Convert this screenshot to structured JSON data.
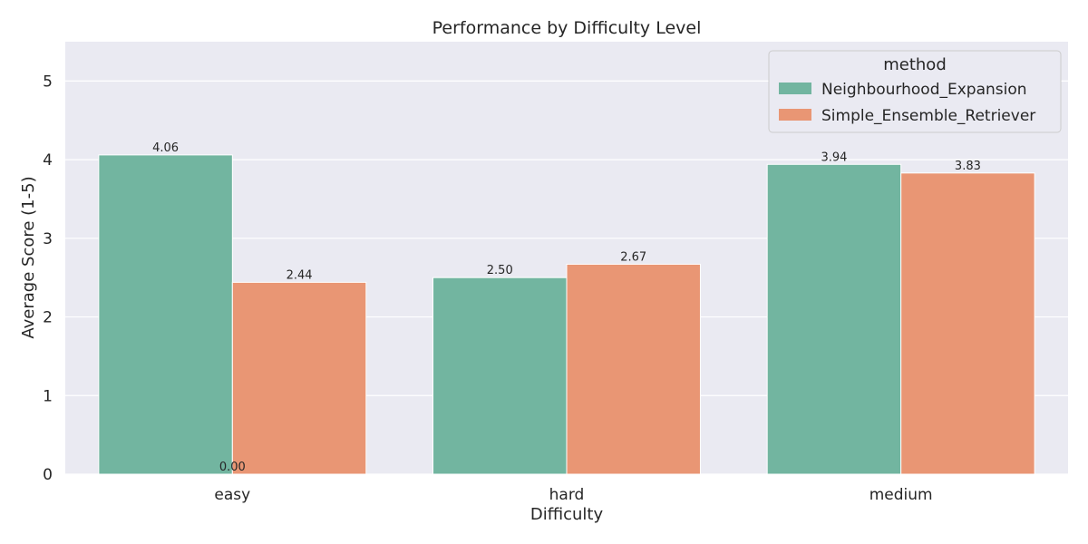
{
  "chart_data": {
    "type": "bar",
    "title": "Performance by Difficulty Level",
    "xlabel": "Difficulty",
    "ylabel": "Average Score (1-5)",
    "categories": [
      "easy",
      "hard",
      "medium"
    ],
    "series": [
      {
        "name": "Neighbourhood_Expansion",
        "values": [
          4.06,
          2.5,
          3.94
        ],
        "color": "#72b5a0"
      },
      {
        "name": "Simple_Ensemble_Retriever",
        "values": [
          2.44,
          2.67,
          3.83
        ],
        "color": "#e99674"
      }
    ],
    "bar_labels": [
      [
        "4.06",
        "2.50",
        "3.94"
      ],
      [
        "2.44",
        "2.67",
        "3.83"
      ]
    ],
    "extra_label": {
      "text": "0.00",
      "category": "easy",
      "value": 0
    },
    "yticks": [
      0,
      1,
      2,
      3,
      4,
      5
    ],
    "ylim": [
      0,
      5.5
    ],
    "grid": true,
    "legend": {
      "title": "method",
      "position": "top-right"
    },
    "background": "#eaeaf2"
  }
}
